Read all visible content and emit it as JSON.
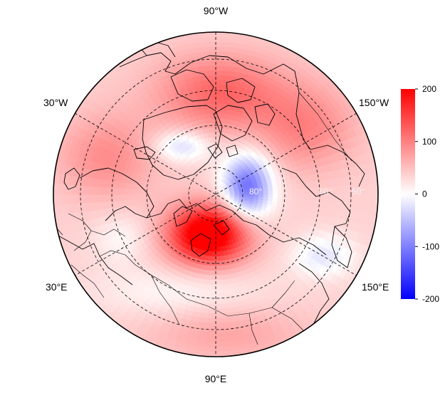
{
  "map": {
    "projection": "north polar stereographic",
    "longitude_labels": {
      "top": "90°W",
      "bottom": "90°E",
      "upper_left": "30°W",
      "lower_left": "30°E",
      "upper_right": "150°W",
      "lower_right": "150°E"
    },
    "latitude_labels": [
      "80°",
      "60°",
      "50°"
    ],
    "features": [
      "coastlines",
      "country borders",
      "dashed graticule"
    ],
    "field": {
      "description_values": "anomaly field in colorbar units",
      "centers": [
        {
          "region": "Kara Sea / Taymyr",
          "value": 200
        },
        {
          "region": "Beaufort / Chukchi side of pole",
          "value": -100
        },
        {
          "region": "Canadian Archipelago / Baffin",
          "value": 80
        },
        {
          "region": "Greenland",
          "value": -40
        },
        {
          "region": "North Pacific / Bering",
          "value": -40
        }
      ]
    }
  },
  "colorbar": {
    "min": -200,
    "max": 200,
    "ticks": [
      "200",
      "100",
      "0",
      "-100",
      "-200"
    ],
    "colors": {
      "low": "#0000ff",
      "mid": "#ffffff",
      "high": "#ff0000"
    }
  }
}
